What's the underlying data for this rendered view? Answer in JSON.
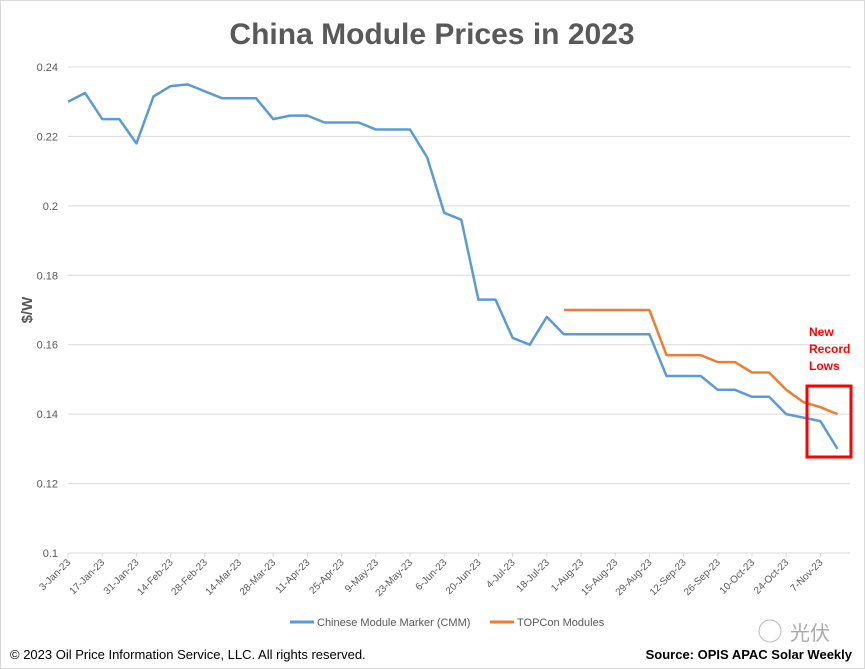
{
  "chart_data": {
    "type": "line",
    "title": "China Module Prices in 2023",
    "ylabel": "$/W",
    "xlabel": "",
    "ylim": [
      0.1,
      0.24
    ],
    "yticks": [
      "0.1",
      "0.12",
      "0.14",
      "0.16",
      "0.18",
      "0.2",
      "0.22",
      "0.24"
    ],
    "grid": true,
    "legend_position": "bottom",
    "x": [
      "3-Jan-23",
      "10-Jan-23",
      "17-Jan-23",
      "24-Jan-23",
      "31-Jan-23",
      "7-Feb-23",
      "14-Feb-23",
      "21-Feb-23",
      "28-Feb-23",
      "7-Mar-23",
      "14-Mar-23",
      "21-Mar-23",
      "28-Mar-23",
      "4-Apr-23",
      "11-Apr-23",
      "18-Apr-23",
      "25-Apr-23",
      "2-May-23",
      "9-May-23",
      "16-May-23",
      "23-May-23",
      "30-May-23",
      "6-Jun-23",
      "13-Jun-23",
      "20-Jun-23",
      "27-Jun-23",
      "4-Jul-23",
      "11-Jul-23",
      "18-Jul-23",
      "25-Jul-23",
      "1-Aug-23",
      "8-Aug-23",
      "15-Aug-23",
      "22-Aug-23",
      "29-Aug-23",
      "5-Sep-23",
      "12-Sep-23",
      "19-Sep-23",
      "26-Sep-23",
      "3-Oct-23",
      "10-Oct-23",
      "17-Oct-23",
      "24-Oct-23",
      "31-Oct-23",
      "7-Nov-23",
      "14-Nov-23"
    ],
    "xtick_labels": [
      "3-Jan-23",
      "17-Jan-23",
      "31-Jan-23",
      "14-Feb-23",
      "28-Feb-23",
      "14-Mar-23",
      "28-Mar-23",
      "11-Apr-23",
      "25-Apr-23",
      "9-May-23",
      "23-May-23",
      "6-Jun-23",
      "20-Jun-23",
      "4-Jul-23",
      "18-Jul-23",
      "1-Aug-23",
      "15-Aug-23",
      "29-Aug-23",
      "12-Sep-23",
      "26-Sep-23",
      "10-Oct-23",
      "24-Oct-23",
      "7-Nov-23"
    ],
    "series": [
      {
        "name": "Chinese Module Marker (CMM)",
        "color": "#5b9bd5",
        "values": [
          0.23,
          0.2325,
          0.225,
          0.225,
          0.218,
          0.2315,
          0.2345,
          0.235,
          0.233,
          0.231,
          0.231,
          0.231,
          0.225,
          0.226,
          0.226,
          0.224,
          0.224,
          0.224,
          0.222,
          0.222,
          0.222,
          0.214,
          0.198,
          0.196,
          0.173,
          0.173,
          0.162,
          0.16,
          0.168,
          0.163,
          0.163,
          0.163,
          0.163,
          0.163,
          0.163,
          0.151,
          0.151,
          0.151,
          0.147,
          0.147,
          0.145,
          0.145,
          0.14,
          0.139,
          0.138,
          0.13
        ]
      },
      {
        "name": "TOPCon Modules",
        "color": "#ed7d31",
        "values": [
          null,
          null,
          null,
          null,
          null,
          null,
          null,
          null,
          null,
          null,
          null,
          null,
          null,
          null,
          null,
          null,
          null,
          null,
          null,
          null,
          null,
          null,
          null,
          null,
          null,
          null,
          null,
          null,
          null,
          0.17,
          0.17,
          0.17,
          0.17,
          0.17,
          0.17,
          0.157,
          0.157,
          0.157,
          0.155,
          0.155,
          0.152,
          0.152,
          0.147,
          0.1435,
          0.142,
          0.14
        ]
      }
    ],
    "annotation": {
      "text": [
        "New",
        "Record",
        "Lows"
      ],
      "color": "#ff0000"
    }
  },
  "footer": {
    "copyright": "© 2023  Oil Price Information Service, LLC. All rights reserved.",
    "source": "Source: OPIS APAC Solar Weekly"
  },
  "watermark": "光伏"
}
